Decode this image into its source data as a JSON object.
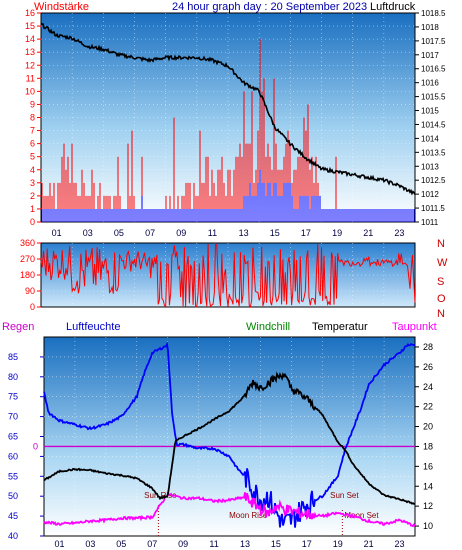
{
  "header": {
    "left_label": "Windstärke",
    "title": "24 hour graph day : 20 September 2023",
    "right_label": "Luftdruck"
  },
  "colors": {
    "wind": "#ff0000",
    "gust": "#0000ff",
    "pressure": "#000000",
    "humidity": "#0000ff",
    "temperature": "#000000",
    "dewpoint": "#ff00ff",
    "background_top": "#1a6fc0",
    "background_bottom": "#ffffff"
  },
  "chart_data": [
    {
      "type": "bar",
      "name": "wind-pressure-panel",
      "x": {
        "ticks": [
          "01",
          "03",
          "05",
          "07",
          "09",
          "11",
          "13",
          "15",
          "17",
          "19",
          "21",
          "23"
        ],
        "range": [
          0,
          24
        ]
      },
      "left_axis": {
        "label": "Windstärke",
        "range": [
          0,
          16
        ],
        "ticks": [
          "0",
          "1",
          "2",
          "3",
          "4",
          "5",
          "6",
          "7",
          "8",
          "9",
          "10",
          "11",
          "12",
          "13",
          "14",
          "15",
          "16"
        ]
      },
      "right_axis": {
        "label": "Luftdruck",
        "range": [
          1011,
          1018.5
        ],
        "ticks": [
          "1011",
          "1011.5",
          "1012",
          "1012.5",
          "1013",
          "1013.5",
          "1014",
          "1014.5",
          "1015",
          "1015.5",
          "1016",
          "1016.5",
          "1017",
          "1017.5",
          "1018",
          "1018.5"
        ]
      },
      "series": [
        {
          "hours": [
            0,
            1,
            2,
            3,
            4,
            5,
            6,
            7,
            8,
            9,
            10,
            11,
            12,
            13,
            14,
            15,
            16,
            17,
            18,
            19,
            20,
            21,
            22,
            23,
            24
          ],
          "values": [
            1018.1,
            1017.7,
            1017.6,
            1017.3,
            1017.2,
            1017.0,
            1016.9,
            1016.8,
            1016.9,
            1016.9,
            1016.9,
            1016.8,
            1016.6,
            1016.0,
            1015.7,
            1014.4,
            1013.8,
            1013.3,
            1012.9,
            1012.8,
            1012.7,
            1012.6,
            1012.5,
            1012.3,
            1012.0
          ]
        }
      ],
      "wind_envelope": [
        3,
        5,
        3,
        3,
        2,
        2,
        1,
        1,
        2,
        3,
        4,
        4,
        4,
        7,
        9,
        7,
        5,
        4,
        1,
        1,
        1,
        1,
        1,
        1
      ],
      "gust_envelope": [
        1,
        1,
        1,
        1,
        1,
        1,
        3,
        1,
        1,
        1,
        1,
        1,
        1,
        3,
        3,
        3,
        2,
        2,
        1,
        1,
        1,
        1,
        1,
        1
      ]
    },
    {
      "type": "scatter",
      "name": "wind-direction-panel",
      "x": {
        "range": [
          0,
          24
        ]
      },
      "y": {
        "range": [
          0,
          360
        ],
        "ticks": [
          "0",
          "90",
          "180",
          "270",
          "360"
        ],
        "labels_right": [
          "N",
          "W",
          "S",
          "O",
          "N"
        ]
      }
    },
    {
      "type": "line",
      "name": "humidity-temperature-panel",
      "labels": {
        "regen": "Regen",
        "humidity": "Luftfeuchte",
        "windchill": "Windchill",
        "temperature": "Temperatur",
        "dewpoint": "Taupunkt"
      },
      "left_axis": {
        "range": [
          40,
          90
        ],
        "ticks": [
          "40",
          "45",
          "50",
          "55",
          "60",
          "65",
          "70",
          "75",
          "80",
          "85"
        ]
      },
      "rain_axis": {
        "tick": "0"
      },
      "right_axis": {
        "range": [
          9,
          29
        ],
        "ticks": [
          "10",
          "12",
          "14",
          "16",
          "18",
          "20",
          "22",
          "24",
          "26",
          "28"
        ]
      },
      "x": {
        "ticks": [
          "01",
          "03",
          "05",
          "07",
          "09",
          "11",
          "13",
          "15",
          "17",
          "19",
          "21",
          "23"
        ],
        "range": [
          0,
          24
        ]
      },
      "annotations": [
        {
          "label": "Sun Rise",
          "hour": 7.4
        },
        {
          "label": "Moon Rise",
          "hour": 12.3
        },
        {
          "label": "Sun Set",
          "hour": 19.3
        },
        {
          "label": "Moon Set",
          "hour": 19.3
        }
      ],
      "series": [
        {
          "name": "Luftfeuchte",
          "hours": [
            0,
            0.3,
            1,
            2,
            3,
            4,
            5,
            6,
            6.5,
            7,
            7.5,
            8,
            8.3,
            8.6,
            9,
            10,
            11,
            12,
            12.5,
            13,
            13.5,
            14,
            14.5,
            15,
            15.5,
            16,
            16.5,
            17,
            18,
            19,
            19.5,
            20,
            20.5,
            21,
            22,
            23,
            23.5,
            24
          ],
          "values": [
            76,
            71,
            69,
            68,
            67,
            68,
            70,
            75,
            81,
            86,
            87,
            88,
            70,
            63,
            63,
            62,
            62,
            60,
            57,
            55,
            52,
            49,
            50,
            46,
            43,
            44,
            46,
            48,
            50,
            55,
            62,
            67,
            72,
            78,
            83,
            86,
            88,
            88
          ]
        },
        {
          "name": "Temperatur",
          "hours": [
            0,
            1,
            2,
            3,
            4,
            5,
            6,
            7,
            7.5,
            8,
            8.5,
            9,
            10,
            11,
            12,
            13,
            13.5,
            14,
            15,
            15.5,
            16,
            17,
            18,
            19,
            19.5,
            20,
            21,
            22,
            23,
            24
          ],
          "values": [
            14.6,
            15.5,
            15.7,
            15.6,
            15.3,
            15.1,
            14.8,
            13.8,
            12.8,
            13.0,
            18.5,
            19.0,
            19.8,
            20.7,
            21.6,
            23.1,
            24.5,
            23.9,
            24.9,
            25.3,
            23.8,
            22.8,
            21.2,
            18.5,
            17.6,
            16.2,
            14.3,
            13.1,
            12.7,
            12.2
          ]
        },
        {
          "name": "Taupunkt",
          "hours": [
            0,
            1,
            2,
            3,
            4,
            5,
            6,
            7,
            8,
            9,
            10,
            11,
            12,
            13,
            14,
            14.5,
            15,
            16,
            17,
            18,
            19,
            20,
            21,
            22,
            23,
            24
          ],
          "values": [
            10.4,
            10.2,
            10.3,
            10.5,
            10.6,
            10.8,
            10.8,
            10.9,
            13.2,
            12.8,
            12.8,
            12.5,
            12.6,
            12.9,
            11.8,
            11.2,
            12.0,
            11.5,
            11.2,
            11.0,
            11.3,
            11.0,
            10.5,
            10.2,
            10.6,
            10.0
          ]
        }
      ]
    }
  ]
}
